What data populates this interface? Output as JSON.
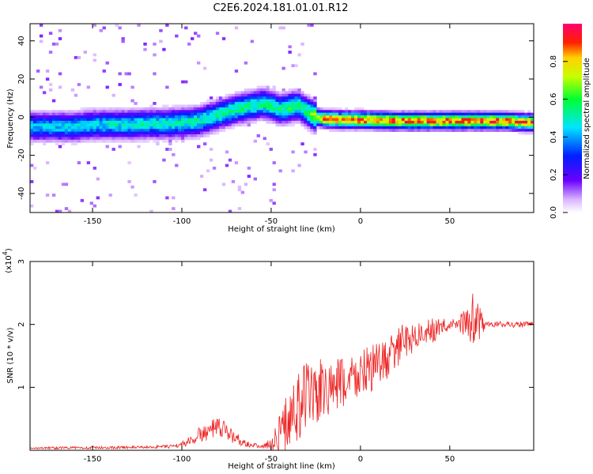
{
  "title": "C2E6.2024.181.01.01.R12",
  "colors": {
    "snr_line": "#ee2222",
    "axis": "#000000"
  },
  "chart_data": [
    {
      "type": "heatmap",
      "xlabel": "Height of straight line (km)",
      "ylabel": "Frequency (Hz)",
      "xlim": [
        -185,
        97
      ],
      "ylim": [
        -50,
        49
      ],
      "xticks": [
        -150,
        -100,
        -50,
        0,
        50
      ],
      "yticks": [
        -40,
        -20,
        0,
        20,
        40
      ],
      "colorbar": {
        "label": "Normalized spectral amplitude",
        "range": [
          0,
          1
        ],
        "ticks": [
          "0.0",
          "0.2",
          "0.4",
          "0.6",
          "0.8"
        ],
        "colormap": "rainbow (white → violet → blue → cyan → green → yellow → red → magenta)"
      },
      "ridge": {
        "description": "frequency of spectral peak vs height",
        "x": [
          -185,
          -170,
          -160,
          -150,
          -140,
          -130,
          -120,
          -110,
          -100,
          -90,
          -80,
          -70,
          -60,
          -55,
          -50,
          -45,
          -40,
          -35,
          -30,
          -25,
          -20,
          -10,
          0,
          20,
          50,
          80,
          97
        ],
        "y": [
          -5,
          -5,
          -5,
          -4,
          -4,
          -4,
          -3.5,
          -3.5,
          -3,
          -2,
          1,
          4,
          6,
          7,
          6,
          4,
          5,
          6,
          3,
          0,
          -1,
          -1.5,
          -1.5,
          -2,
          -2,
          -2,
          -3
        ]
      }
    },
    {
      "type": "line",
      "xlabel": "Height of straight line (km)",
      "ylabel": "SNR (10 * v/v)",
      "multiplier": "(x10",
      "multiplier_exp": "4",
      "multiplier_close": ")",
      "xlim": [
        -185,
        97
      ],
      "ylim": [
        0,
        3
      ],
      "xticks": [
        -150,
        -100,
        -50,
        0,
        50
      ],
      "yticks": [
        "1",
        "2",
        "3"
      ],
      "series": [
        {
          "x": [
            -185,
            -170,
            -150,
            -120,
            -105,
            -100,
            -95,
            -90,
            -85,
            -80,
            -75,
            -70,
            -65,
            -60,
            -55,
            -50,
            -45,
            -40,
            -35,
            -30,
            -25,
            -20,
            -15,
            -10,
            -5,
            0,
            5,
            10,
            15,
            20,
            25,
            30,
            35,
            40,
            45,
            50,
            55,
            60,
            62,
            65,
            70,
            75,
            80,
            85,
            90,
            97
          ],
          "y": [
            0.03,
            0.04,
            0.04,
            0.05,
            0.06,
            0.1,
            0.15,
            0.25,
            0.3,
            0.35,
            0.3,
            0.2,
            0.12,
            0.08,
            0.06,
            0.1,
            0.3,
            0.5,
            0.7,
            0.85,
            0.9,
            0.95,
            1.0,
            1.05,
            1.15,
            1.2,
            1.3,
            1.35,
            1.45,
            1.6,
            1.75,
            1.8,
            1.85,
            1.9,
            1.95,
            2.0,
            2.0,
            2.05,
            2.05,
            2.02,
            2.0,
            2.0,
            2.0,
            2.0,
            2.0,
            2.0
          ],
          "spread": [
            0.01,
            0.02,
            0.02,
            0.02,
            0.03,
            0.05,
            0.08,
            0.12,
            0.15,
            0.18,
            0.15,
            0.1,
            0.06,
            0.04,
            0.03,
            0.1,
            0.3,
            0.5,
            0.6,
            0.6,
            0.55,
            0.5,
            0.45,
            0.45,
            0.4,
            0.4,
            0.4,
            0.35,
            0.35,
            0.3,
            0.3,
            0.25,
            0.2,
            0.2,
            0.15,
            0.08,
            0.1,
            0.3,
            0.5,
            0.4,
            0.05,
            0.05,
            0.05,
            0.05,
            0.05,
            0.05
          ]
        }
      ]
    }
  ]
}
